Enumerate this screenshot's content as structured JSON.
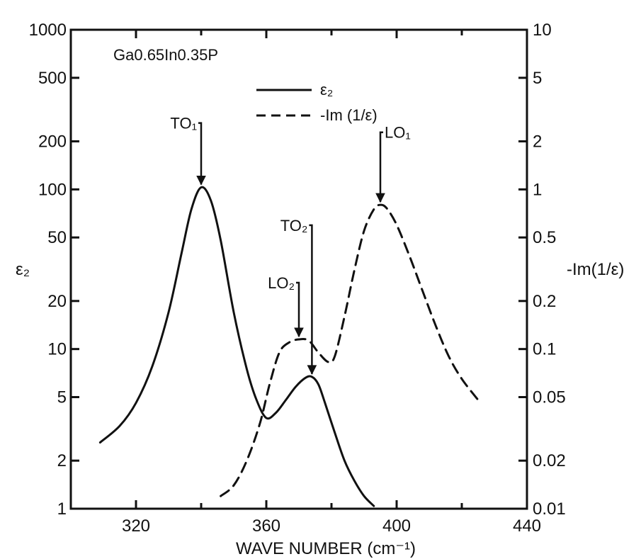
{
  "chart_data": {
    "type": "line",
    "title": "",
    "sample_label": "Ga0.65In0.35P",
    "xlabel": "WAVE NUMBER (cm⁻¹)",
    "ylabel_left": "ε₂",
    "ylabel_right": "-Im(1/ε)",
    "x_range": [
      300,
      440
    ],
    "x_ticks": [
      {
        "value": 320,
        "label": "320"
      },
      {
        "value": 360,
        "label": "360"
      },
      {
        "value": 400,
        "label": "400"
      },
      {
        "value": 440,
        "label": "440"
      }
    ],
    "x_minor_ticks": [
      340,
      380,
      420
    ],
    "y_left_scale": "log",
    "y_left_range": [
      1,
      1000
    ],
    "y_left_ticks": [
      {
        "value": 1,
        "label": "1"
      },
      {
        "value": 2,
        "label": "2"
      },
      {
        "value": 5,
        "label": "5"
      },
      {
        "value": 10,
        "label": "10"
      },
      {
        "value": 20,
        "label": "20"
      },
      {
        "value": 50,
        "label": "50"
      },
      {
        "value": 100,
        "label": "100"
      },
      {
        "value": 200,
        "label": "200"
      },
      {
        "value": 500,
        "label": "500"
      },
      {
        "value": 1000,
        "label": "1000"
      }
    ],
    "y_right_scale": "log",
    "y_right_range": [
      0.01,
      10
    ],
    "y_right_ticks": [
      {
        "value": 0.01,
        "label": "0.01"
      },
      {
        "value": 0.02,
        "label": "0.02"
      },
      {
        "value": 0.05,
        "label": "0.05"
      },
      {
        "value": 0.1,
        "label": "0.1"
      },
      {
        "value": 0.2,
        "label": "0.2"
      },
      {
        "value": 0.5,
        "label": "0.5"
      },
      {
        "value": 1,
        "label": "1"
      },
      {
        "value": 2,
        "label": "2"
      },
      {
        "value": 5,
        "label": "5"
      },
      {
        "value": 10,
        "label": "10"
      }
    ],
    "legend": [
      {
        "label": "ε₂",
        "style": "solid"
      },
      {
        "label": "-Im (1/ε)",
        "style": "dashed"
      }
    ],
    "series": [
      {
        "axis": "left",
        "style": "solid",
        "points": [
          [
            309,
            2.6
          ],
          [
            315,
            3.3
          ],
          [
            320,
            4.6
          ],
          [
            325,
            7.8
          ],
          [
            330,
            17
          ],
          [
            334,
            40
          ],
          [
            337,
            75
          ],
          [
            340,
            103
          ],
          [
            343,
            85
          ],
          [
            346,
            48
          ],
          [
            350,
            17
          ],
          [
            354,
            7.5
          ],
          [
            357,
            4.8
          ],
          [
            360,
            3.7
          ],
          [
            363,
            4.0
          ],
          [
            366,
            4.8
          ],
          [
            369,
            5.8
          ],
          [
            372,
            6.6
          ],
          [
            374,
            6.7
          ],
          [
            376,
            6.0
          ],
          [
            378,
            4.6
          ],
          [
            381,
            3.0
          ],
          [
            384,
            2.0
          ],
          [
            387,
            1.5
          ],
          [
            390,
            1.2
          ],
          [
            393,
            1.04
          ]
        ]
      },
      {
        "axis": "right",
        "style": "dashed",
        "points": [
          [
            346,
            0.012
          ],
          [
            350,
            0.014
          ],
          [
            354,
            0.02
          ],
          [
            358,
            0.034
          ],
          [
            361,
            0.06
          ],
          [
            364,
            0.095
          ],
          [
            367,
            0.11
          ],
          [
            370,
            0.115
          ],
          [
            373,
            0.113
          ],
          [
            376,
            0.095
          ],
          [
            379,
            0.083
          ],
          [
            381,
            0.09
          ],
          [
            384,
            0.16
          ],
          [
            387,
            0.31
          ],
          [
            390,
            0.55
          ],
          [
            393,
            0.75
          ],
          [
            395,
            0.8
          ],
          [
            397,
            0.76
          ],
          [
            400,
            0.6
          ],
          [
            404,
            0.38
          ],
          [
            408,
            0.23
          ],
          [
            412,
            0.14
          ],
          [
            416,
            0.09
          ],
          [
            420,
            0.065
          ],
          [
            425,
            0.048
          ]
        ]
      }
    ],
    "annotations": [
      {
        "label": "TO₁",
        "x": 340,
        "axis": "left",
        "y": 103,
        "label_x": 333,
        "label_y": 240
      },
      {
        "label": "TO₂",
        "x": 374,
        "axis": "left",
        "y": 6.7,
        "label_x": 366,
        "label_y": 55
      },
      {
        "label": "LO₂",
        "x": 370,
        "axis": "right",
        "y": 0.115,
        "label_x": 363,
        "label_y": 0.24
      },
      {
        "label": "LO₁",
        "x": 395,
        "axis": "right",
        "y": 0.8,
        "label_x": 401,
        "label_y": 2.1
      }
    ]
  }
}
